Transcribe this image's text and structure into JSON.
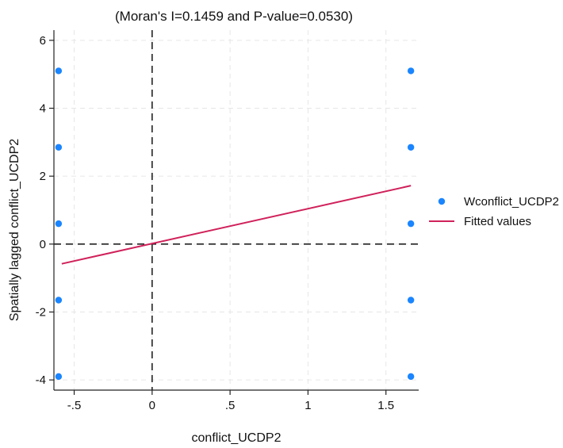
{
  "chart_data": {
    "type": "scatter",
    "title": "(Moran's I=0.1459 and P-value=0.0530)",
    "xlabel": "conflict_UCDP2",
    "ylabel": "Spatially lagged conflict_UCDP2",
    "xlim": [
      -0.63,
      1.71
    ],
    "ylim": [
      -4.3,
      6.3
    ],
    "xticks": [
      -0.5,
      0,
      0.5,
      1,
      1.5
    ],
    "xtick_labels": [
      "-.5",
      "0",
      ".5",
      "1",
      "1.5"
    ],
    "yticks": [
      -4,
      -2,
      0,
      2,
      4,
      6
    ],
    "ytick_labels": [
      "-4",
      "-2",
      "0",
      "2",
      "4",
      "6"
    ],
    "grid": true,
    "legend_position": "right",
    "series": [
      {
        "name": "Wconflict_UCDP2",
        "kind": "scatter",
        "color": "#1a85ff",
        "points": [
          {
            "x": -0.6,
            "y": 5.1
          },
          {
            "x": -0.6,
            "y": 2.85
          },
          {
            "x": -0.6,
            "y": 0.6
          },
          {
            "x": -0.6,
            "y": -1.65
          },
          {
            "x": -0.6,
            "y": -3.9
          },
          {
            "x": 1.66,
            "y": 5.1
          },
          {
            "x": 1.66,
            "y": 2.85
          },
          {
            "x": 1.66,
            "y": 0.6
          },
          {
            "x": 1.66,
            "y": -1.65
          },
          {
            "x": 1.66,
            "y": -3.9
          }
        ]
      },
      {
        "name": "Fitted values",
        "kind": "line",
        "color": "#d0215a",
        "points": [
          {
            "x": -0.58,
            "y": -0.58
          },
          {
            "x": 1.66,
            "y": 1.72
          }
        ]
      }
    ],
    "reference_lines": {
      "x": 0,
      "y": 0,
      "style": "dashed",
      "color": "#222222"
    }
  }
}
